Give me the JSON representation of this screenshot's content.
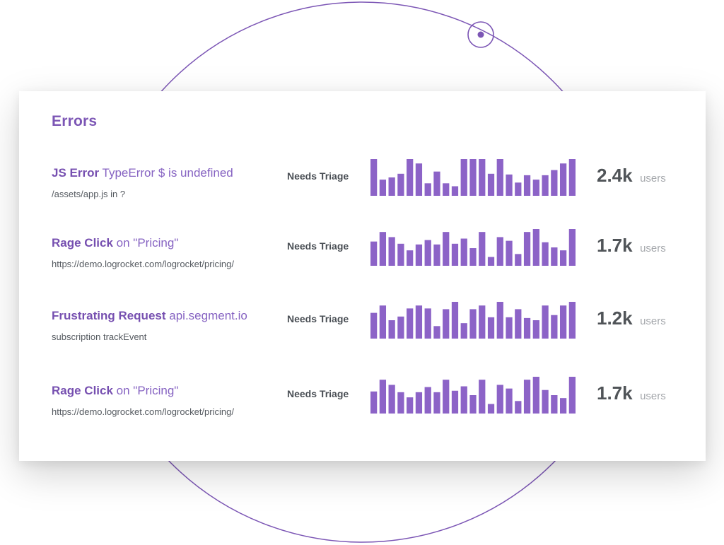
{
  "accent": "#8c63c7",
  "card": {
    "title": "Errors"
  },
  "rows": [
    {
      "type": "JS Error",
      "detail": "TypeError $ is undefined",
      "sub": "/assets/app.js in ?",
      "status": "Needs Triage",
      "count": "2.4k",
      "unit": "users",
      "bars": [
        1.0,
        0.44,
        0.5,
        0.6,
        1.0,
        0.88,
        0.34,
        0.66,
        0.34,
        0.26,
        1.0,
        1.0,
        1.0,
        0.6,
        1.0,
        0.58,
        0.36,
        0.56,
        0.44,
        0.56,
        0.7,
        0.88,
        1.0
      ]
    },
    {
      "type": "Rage Click",
      "detail": "on \"Pricing\"",
      "sub": "https://demo.logrocket.com/logrocket/pricing/",
      "status": "Needs Triage",
      "count": "1.7k",
      "unit": "users",
      "bars": [
        0.66,
        0.92,
        0.78,
        0.6,
        0.42,
        0.58,
        0.7,
        0.58,
        0.92,
        0.6,
        0.74,
        0.48,
        0.92,
        0.24,
        0.78,
        0.68,
        0.32,
        0.92,
        1.0,
        0.64,
        0.5,
        0.42,
        1.0
      ]
    },
    {
      "type": "Frustrating Request",
      "detail": "api.segment.io",
      "sub": "subscription trackEvent",
      "status": "Needs Triage",
      "count": "1.2k",
      "unit": "users",
      "bars": [
        0.7,
        0.9,
        0.5,
        0.6,
        0.82,
        0.9,
        0.82,
        0.34,
        0.8,
        1.0,
        0.42,
        0.8,
        0.9,
        0.58,
        1.0,
        0.58,
        0.8,
        0.56,
        0.5,
        0.9,
        0.64,
        0.9,
        1.0
      ]
    },
    {
      "type": "Rage Click",
      "detail": "on \"Pricing\"",
      "sub": "https://demo.logrocket.com/logrocket/pricing/",
      "status": "Needs Triage",
      "count": "1.7k",
      "unit": "users",
      "bars": [
        0.6,
        0.92,
        0.78,
        0.58,
        0.44,
        0.58,
        0.72,
        0.58,
        0.92,
        0.62,
        0.74,
        0.5,
        0.92,
        0.26,
        0.78,
        0.68,
        0.34,
        0.92,
        1.0,
        0.64,
        0.5,
        0.42,
        1.0
      ]
    }
  ]
}
